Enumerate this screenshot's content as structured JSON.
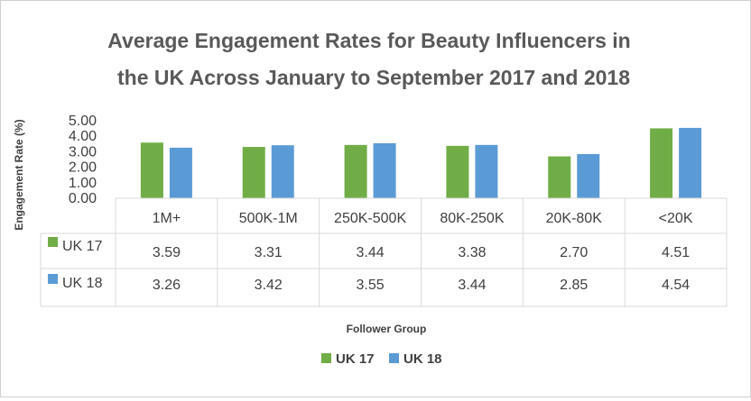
{
  "chart_data": {
    "type": "bar",
    "title_lines": [
      "Average Engagement Rates for Beauty Influencers in",
      "the  UK Across January to September 2017 and 2018"
    ],
    "xlabel": "Follower Group",
    "ylabel": "Engagement Rate (%)",
    "ylim": [
      0,
      5
    ],
    "y_ticks": [
      "0.00",
      "1.00",
      "2.00",
      "3.00",
      "4.00",
      "5.00"
    ],
    "categories": [
      "1M+",
      "500K-1M",
      "250K-500K",
      "80K-250K",
      "20K-80K",
      "<20K"
    ],
    "series": [
      {
        "name": "UK 17",
        "color": "#70ad47",
        "values": [
          3.59,
          3.31,
          3.44,
          3.38,
          2.7,
          4.51
        ],
        "labels": [
          "3.59",
          "3.31",
          "3.44",
          "3.38",
          "2.70",
          "4.51"
        ]
      },
      {
        "name": "UK 18",
        "color": "#5b9bd5",
        "values": [
          3.26,
          3.42,
          3.55,
          3.44,
          2.85,
          4.54
        ],
        "labels": [
          "3.26",
          "3.42",
          "3.55",
          "3.44",
          "2.85",
          "4.54"
        ]
      }
    ],
    "legend": [
      "UK 17",
      "UK 18"
    ],
    "legend_position": "bottom",
    "grid": false,
    "data_table": true
  }
}
